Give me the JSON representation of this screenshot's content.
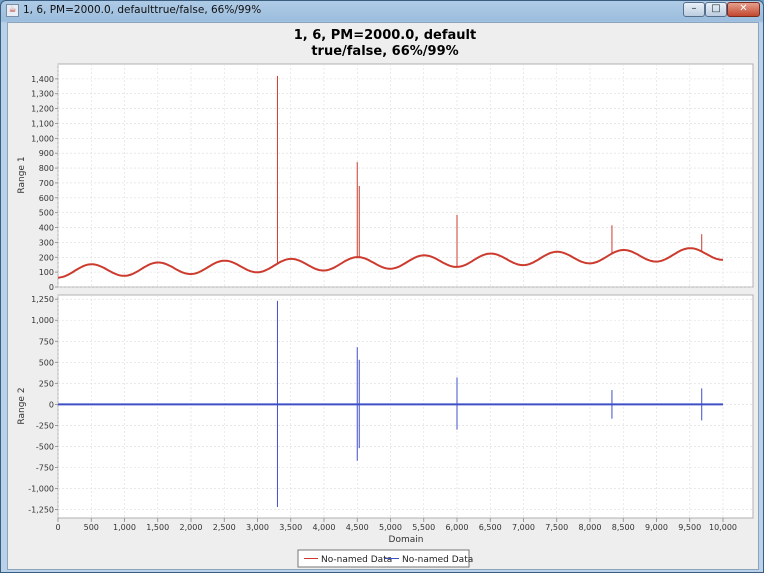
{
  "window": {
    "title": "1, 6, PM=2000.0, defaulttrue/false, 66%/99%",
    "minimize_glyph": "–",
    "maximize_glyph": "□",
    "close_glyph": "✕",
    "app_icon": "java-icon"
  },
  "chart_data": {
    "type": "line",
    "title_line1": "1, 6, PM=2000.0, default",
    "title_line2": "true/false, 66%/99%",
    "xlabel": "Domain",
    "xlim": [
      0,
      10000
    ],
    "x_ticks": [
      0,
      500,
      1000,
      1500,
      2000,
      2500,
      3000,
      3500,
      4000,
      4500,
      5000,
      5500,
      6000,
      6500,
      7000,
      7500,
      8000,
      8500,
      9000,
      9500,
      10000
    ],
    "x_tick_labels": [
      "0",
      "500",
      "1,000",
      "1,500",
      "2,000",
      "2,500",
      "3,000",
      "3,500",
      "4,000",
      "4,500",
      "5,000",
      "5,500",
      "6,000",
      "6,500",
      "7,000",
      "7,500",
      "8,000",
      "8,500",
      "9,000",
      "9,500",
      "10,000"
    ],
    "grid": true,
    "legend_position": "bottom-center",
    "subplots": [
      {
        "ylabel": "Range 1",
        "ylim": [
          0,
          1500
        ],
        "y_ticks": [
          0,
          100,
          200,
          300,
          400,
          500,
          600,
          700,
          800,
          900,
          1000,
          1100,
          1200,
          1300,
          1400
        ],
        "y_tick_labels": [
          "0",
          "100",
          "200",
          "300",
          "400",
          "500",
          "600",
          "700",
          "800",
          "900",
          "1,000",
          "1,100",
          "1,200",
          "1,300",
          "1,400"
        ],
        "series": [
          {
            "name": "No-named Data",
            "color": "#cc3b2e",
            "baseline": {
              "x_max": 10000,
              "offset": 105,
              "trend_per_1000": 12,
              "amplitude": 42,
              "period": 1000,
              "phase_x": 250
            },
            "spikes": [
              {
                "x": 3300,
                "y": 1420
              },
              {
                "x": 4500,
                "y": 840
              },
              {
                "x": 4530,
                "y": 680
              },
              {
                "x": 6000,
                "y": 485
              },
              {
                "x": 8330,
                "y": 415
              },
              {
                "x": 9680,
                "y": 355
              }
            ]
          }
        ]
      },
      {
        "ylabel": "Range 2",
        "ylim": [
          -1350,
          1300
        ],
        "y_ticks": [
          -1250,
          -1000,
          -750,
          -500,
          -250,
          0,
          250,
          500,
          750,
          1000,
          1250
        ],
        "y_tick_labels": [
          "-1,250",
          "-1,000",
          "-750",
          "-500",
          "-250",
          "0",
          "250",
          "500",
          "750",
          "1,000",
          "1,250"
        ],
        "series": [
          {
            "name": "No-named Data",
            "color": "#3f4fc8",
            "baseline": {
              "x_max": 10000,
              "value": 0
            },
            "spikes": [
              {
                "x": 3300,
                "high": 1230,
                "low": -1220
              },
              {
                "x": 4500,
                "high": 680,
                "low": -670
              },
              {
                "x": 4530,
                "high": 530,
                "low": -520
              },
              {
                "x": 6000,
                "high": 320,
                "low": -300
              },
              {
                "x": 8330,
                "high": 170,
                "low": -170
              },
              {
                "x": 9680,
                "high": 190,
                "low": -190
              }
            ]
          }
        ]
      }
    ]
  }
}
